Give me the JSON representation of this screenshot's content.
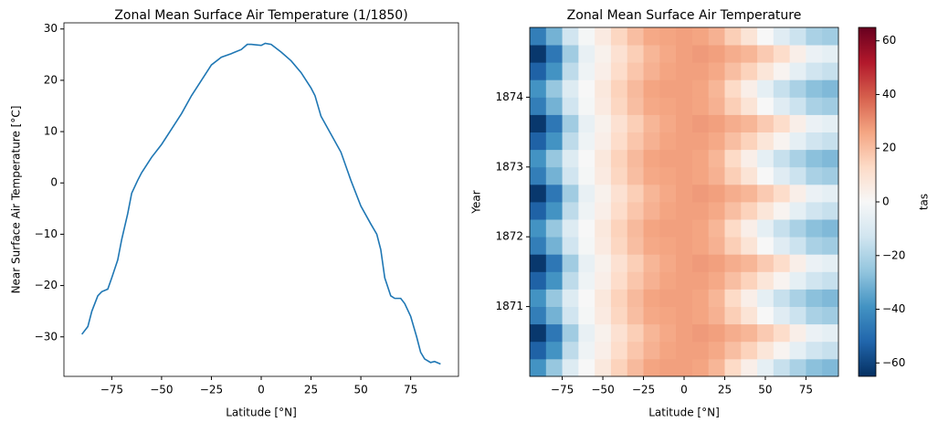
{
  "chart_data": [
    {
      "type": "line",
      "title": "Zonal Mean Surface Air Temperature (1/1850)",
      "x_label": "Latitude [°N]",
      "y_label": "Near Surface Air Temperature [°C]",
      "x": [
        -90,
        -87,
        -85,
        -82,
        -80,
        -77,
        -75,
        -72,
        -70,
        -67,
        -65,
        -62,
        -60,
        -55,
        -50,
        -45,
        -40,
        -35,
        -30,
        -25,
        -20,
        -15,
        -10,
        -7,
        -5,
        0,
        2,
        5,
        10,
        15,
        20,
        25,
        27,
        30,
        35,
        40,
        45,
        50,
        55,
        58,
        60,
        62,
        65,
        67,
        70,
        72,
        75,
        78,
        80,
        82,
        85,
        87,
        90
      ],
      "values": [
        -29.5,
        -28,
        -25,
        -22,
        -21.2,
        -20.7,
        -18.5,
        -15,
        -11,
        -6,
        -2,
        0.5,
        2,
        5,
        7.5,
        10.5,
        13.5,
        17,
        20,
        23,
        24.5,
        25.2,
        26,
        27,
        27,
        26.8,
        27.2,
        27,
        25.5,
        23.8,
        21.5,
        18.5,
        17,
        13,
        9.5,
        6,
        0.5,
        -4.5,
        -8,
        -10,
        -13,
        -18.5,
        -22,
        -22.5,
        -22.5,
        -23.5,
        -26,
        -30,
        -33,
        -34.3,
        -35,
        -34.8,
        -35.3
      ],
      "color": "#1f77b4",
      "xlim": [
        -99,
        99
      ],
      "xticks": [
        {
          "value": -75,
          "label": "−75"
        },
        {
          "value": -50,
          "label": "−50"
        },
        {
          "value": -25,
          "label": "−25"
        },
        0,
        25,
        50,
        75
      ],
      "ylim": [
        -37.7,
        31.2
      ],
      "yticks": [
        {
          "value": -30,
          "label": "−30"
        },
        {
          "value": -20,
          "label": "−20"
        },
        {
          "value": -10,
          "label": "−10"
        },
        0,
        10,
        20,
        30
      ]
    },
    {
      "type": "heatmap",
      "title": "Zonal Mean Surface Air Temperature",
      "x_label": "Latitude [°N]",
      "y_label": "Year",
      "x": [
        -90,
        -80,
        -70,
        -60,
        -50,
        -40,
        -30,
        -20,
        -10,
        0,
        10,
        20,
        30,
        40,
        50,
        60,
        70,
        80,
        90
      ],
      "y": [
        1870.125,
        1870.375,
        1870.625,
        1870.875,
        1871.125,
        1871.375,
        1871.625,
        1871.875,
        1872.125,
        1872.375,
        1872.625,
        1872.875,
        1873.125,
        1873.375,
        1873.625,
        1873.875,
        1874.125,
        1874.375,
        1874.625,
        1874.875
      ],
      "z": [
        [
          -39,
          -25,
          -9,
          0,
          7,
          15,
          21,
          26,
          27,
          27,
          26,
          22,
          13,
          4,
          -6,
          -15,
          -21,
          -27,
          -29
        ],
        [
          -53,
          -39,
          -17,
          -3,
          4,
          12,
          18,
          23,
          26,
          27,
          27,
          25,
          20,
          15,
          8,
          2,
          -6,
          -13,
          -15
        ],
        [
          -63,
          -47,
          -23,
          -5,
          3,
          10,
          16,
          22,
          25,
          27,
          28,
          27,
          24,
          22,
          17,
          12,
          4,
          -4,
          -6
        ],
        [
          -45,
          -31,
          -13,
          -1,
          6,
          14,
          20,
          25,
          26,
          27,
          26,
          23,
          16,
          9,
          0,
          -8,
          -14,
          -21,
          -23
        ],
        [
          -39,
          -25,
          -9,
          0,
          7,
          15,
          21,
          26,
          27,
          27,
          26,
          22,
          13,
          4,
          -6,
          -15,
          -21,
          -27,
          -29
        ],
        [
          -53,
          -39,
          -17,
          -3,
          4,
          12,
          18,
          23,
          26,
          27,
          27,
          25,
          20,
          15,
          8,
          2,
          -6,
          -13,
          -15
        ],
        [
          -63,
          -47,
          -23,
          -5,
          3,
          10,
          16,
          22,
          25,
          27,
          28,
          27,
          24,
          22,
          17,
          12,
          4,
          -4,
          -6
        ],
        [
          -45,
          -31,
          -13,
          -1,
          6,
          14,
          20,
          25,
          26,
          27,
          26,
          23,
          16,
          9,
          0,
          -8,
          -14,
          -21,
          -23
        ],
        [
          -39,
          -25,
          -9,
          0,
          7,
          15,
          21,
          26,
          27,
          27,
          26,
          22,
          13,
          4,
          -6,
          -15,
          -21,
          -27,
          -29
        ],
        [
          -53,
          -39,
          -17,
          -3,
          4,
          12,
          18,
          23,
          26,
          27,
          27,
          25,
          20,
          15,
          8,
          2,
          -6,
          -13,
          -15
        ],
        [
          -63,
          -47,
          -23,
          -5,
          3,
          10,
          16,
          22,
          25,
          27,
          28,
          27,
          24,
          22,
          17,
          12,
          4,
          -4,
          -6
        ],
        [
          -45,
          -31,
          -13,
          -1,
          6,
          14,
          20,
          25,
          26,
          27,
          26,
          23,
          16,
          9,
          0,
          -8,
          -14,
          -21,
          -23
        ],
        [
          -39,
          -25,
          -9,
          0,
          7,
          15,
          21,
          26,
          27,
          27,
          26,
          22,
          13,
          4,
          -6,
          -15,
          -21,
          -27,
          -29
        ],
        [
          -53,
          -39,
          -17,
          -3,
          4,
          12,
          18,
          23,
          26,
          27,
          27,
          25,
          20,
          15,
          8,
          2,
          -6,
          -13,
          -15
        ],
        [
          -63,
          -47,
          -23,
          -5,
          3,
          10,
          16,
          22,
          25,
          27,
          28,
          27,
          24,
          22,
          17,
          12,
          4,
          -4,
          -6
        ],
        [
          -45,
          -31,
          -13,
          -1,
          6,
          14,
          20,
          25,
          26,
          27,
          26,
          23,
          16,
          9,
          0,
          -8,
          -14,
          -21,
          -23
        ],
        [
          -39,
          -25,
          -9,
          0,
          7,
          15,
          21,
          26,
          27,
          27,
          26,
          22,
          13,
          4,
          -6,
          -15,
          -21,
          -27,
          -29
        ],
        [
          -53,
          -39,
          -17,
          -3,
          4,
          12,
          18,
          23,
          26,
          27,
          27,
          25,
          20,
          15,
          8,
          2,
          -6,
          -13,
          -15
        ],
        [
          -63,
          -47,
          -23,
          -5,
          3,
          10,
          16,
          22,
          25,
          27,
          28,
          27,
          24,
          22,
          17,
          12,
          4,
          -4,
          -6
        ],
        [
          -45,
          -31,
          -13,
          -1,
          6,
          14,
          20,
          25,
          26,
          27,
          26,
          23,
          16,
          9,
          0,
          -8,
          -14,
          -21,
          -23
        ]
      ],
      "xlim": [
        -95,
        95
      ],
      "xticks": [
        {
          "value": -75,
          "label": "−75"
        },
        {
          "value": -50,
          "label": "−50"
        },
        {
          "value": -25,
          "label": "−25"
        },
        0,
        25,
        50,
        75
      ],
      "ylim": [
        1870,
        1875
      ],
      "yticks": [
        1871,
        1872,
        1873,
        1874
      ],
      "colormap": [
        "#053061",
        "#2166ac",
        "#4393c3",
        "#92c5de",
        "#d1e5f0",
        "#f7f7f7",
        "#fddbc7",
        "#f4a582",
        "#d6604d",
        "#b2182b",
        "#67001f"
      ],
      "colorbar": {
        "label": "tas",
        "lim": [
          -65,
          65
        ],
        "ticks": [
          {
            "value": -60,
            "label": "−60"
          },
          {
            "value": -40,
            "label": "−40"
          },
          {
            "value": -20,
            "label": "−20"
          },
          0,
          20,
          40,
          60
        ]
      }
    }
  ]
}
